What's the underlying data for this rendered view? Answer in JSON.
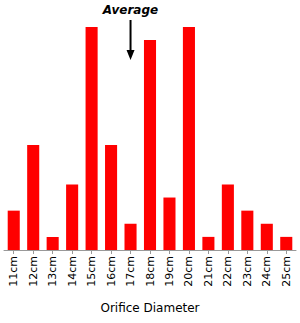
{
  "chart_data": {
    "type": "bar",
    "x_label": "Orifice Diameter",
    "categories": [
      "11cm",
      "12cm",
      "13cm",
      "14cm",
      "15cm",
      "16cm",
      "17cm",
      "18cm",
      "19cm",
      "20cm",
      "21cm",
      "22cm",
      "23cm",
      "24cm",
      "25cm"
    ],
    "values": [
      3,
      8,
      1,
      5,
      17,
      8,
      2,
      16,
      4,
      17,
      1,
      5,
      3,
      2,
      1
    ],
    "color": "#ff0000",
    "ylim": [
      0,
      17
    ],
    "tick_labels": "x",
    "grid": false,
    "annotations": [
      {
        "text": "Average",
        "category": "17cm"
      }
    ]
  }
}
